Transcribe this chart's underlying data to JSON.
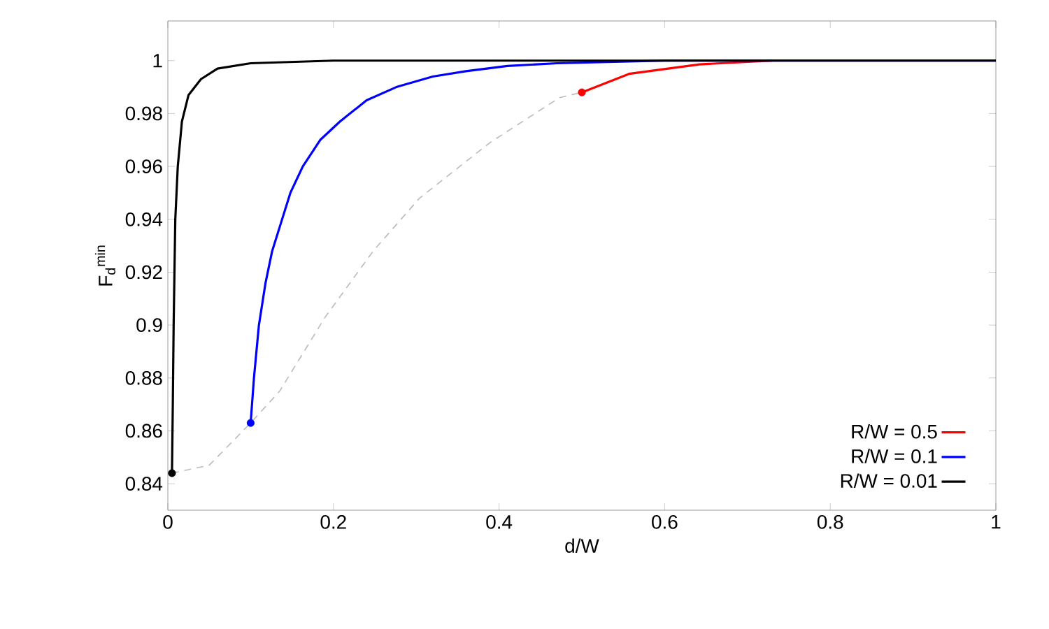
{
  "chart_data": {
    "type": "line",
    "xlabel": "d/W",
    "ylabel": "F$_{d}$$^{min}$",
    "xlim": [
      0,
      1
    ],
    "ylim": [
      0.83,
      1.015
    ],
    "xticks": [
      0,
      0.2,
      0.4,
      0.6,
      0.8,
      1
    ],
    "yticks": [
      0.84,
      0.86,
      0.88,
      0.9,
      0.92,
      0.94,
      0.96,
      0.98,
      1
    ],
    "legend": "bottom right",
    "grid": false,
    "series": [
      {
        "name": "R/W = 0.5",
        "color": "#ff0000",
        "line_style": "solid",
        "x": [
          0.5,
          0.557,
          0.642,
          0.73
        ],
        "values": [
          0.988,
          0.995,
          0.9986,
          1.0
        ]
      },
      {
        "name": "R/W = 0.1",
        "color": "#0000ff",
        "line_style": "solid",
        "x": [
          0.1,
          0.104,
          0.11,
          0.118,
          0.126,
          0.135,
          0.148,
          0.163,
          0.184,
          0.208,
          0.24,
          0.276,
          0.32,
          0.36,
          0.41,
          0.47,
          0.6,
          1
        ],
        "values": [
          0.863,
          0.88,
          0.9,
          0.916,
          0.928,
          0.937,
          0.95,
          0.96,
          0.97,
          0.977,
          0.985,
          0.99,
          0.994,
          0.996,
          0.998,
          0.999,
          1.0,
          1.0
        ]
      },
      {
        "name": "R/W = 0.01",
        "color": "#000000",
        "line_style": "solid",
        "x": [
          0.005,
          0.006,
          0.007,
          0.009,
          0.012,
          0.017,
          0.025,
          0.04,
          0.06,
          0.1,
          0.2,
          1
        ],
        "values": [
          0.844,
          0.87,
          0.9,
          0.94,
          0.96,
          0.977,
          0.987,
          0.993,
          0.997,
          0.999,
          1.0,
          1.0
        ]
      },
      {
        "color": "#bbbbbb",
        "line_style": "dashed",
        "x": [
          0.005,
          0.05,
          0.1,
          0.135,
          0.19,
          0.248,
          0.304,
          0.389,
          0.473,
          0.5
        ],
        "values": [
          0.844,
          0.847,
          0.863,
          0.875,
          0.903,
          0.928,
          0.948,
          0.969,
          0.986,
          0.988
        ]
      },
      {
        "type": "scatter",
        "marker": "circle",
        "color": "#ff0000",
        "x": [
          0.5
        ],
        "values": [
          0.988
        ]
      },
      {
        "type": "scatter",
        "marker": "circle",
        "color": "#0000ff",
        "x": [
          0.1
        ],
        "values": [
          0.863
        ]
      },
      {
        "type": "scatter",
        "marker": "circle",
        "color": "#000000",
        "x": [
          0.005
        ],
        "values": [
          0.844
        ]
      }
    ]
  }
}
